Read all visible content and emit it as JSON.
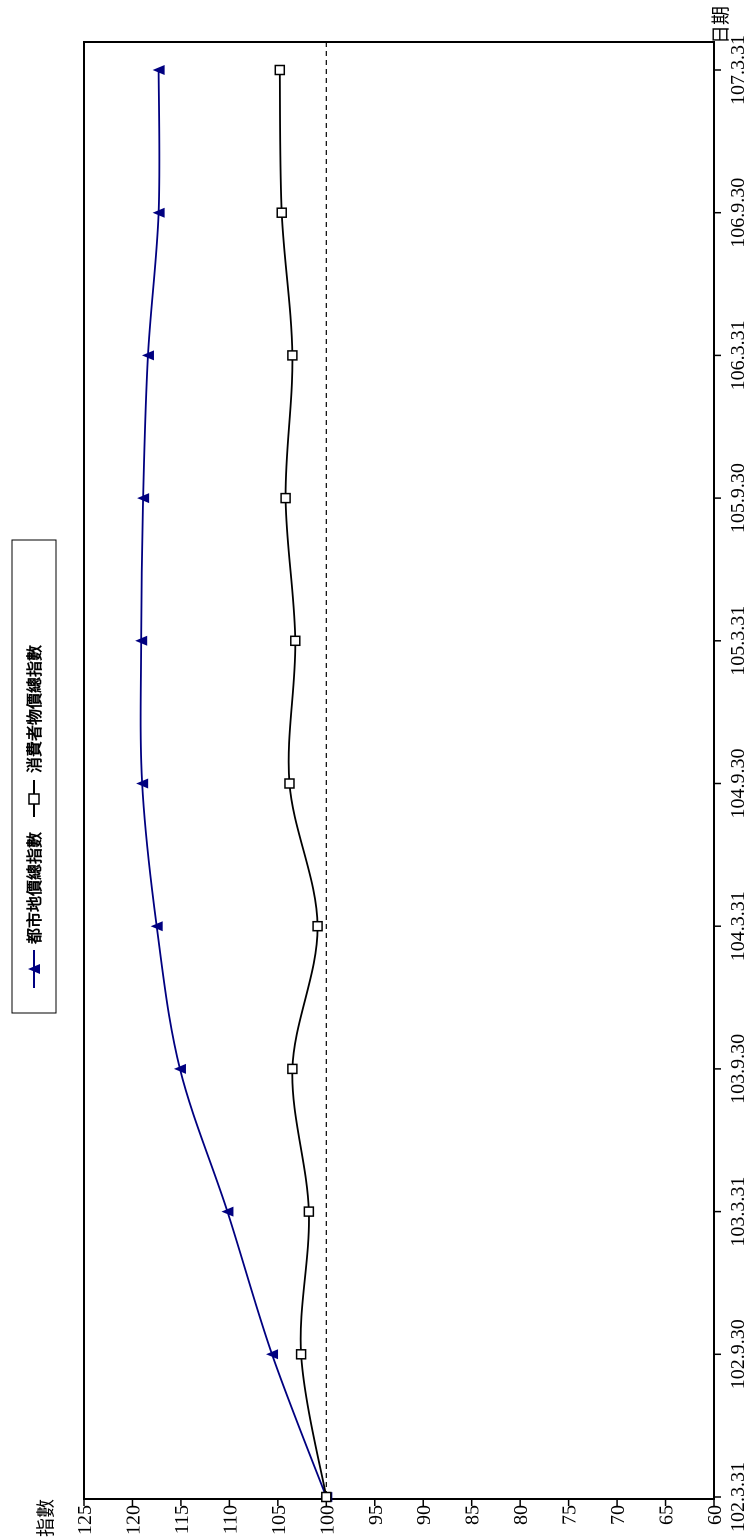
{
  "chart_data": {
    "type": "line",
    "title": "",
    "xlabel": "日期",
    "ylabel": "指數",
    "ylim": [
      60,
      125
    ],
    "yticks": [
      60,
      65,
      70,
      75,
      80,
      85,
      90,
      95,
      100,
      105,
      110,
      115,
      120,
      125
    ],
    "categories": [
      "102.3.31",
      "102.9.30",
      "103.3.31",
      "103.9.30",
      "104.3.31",
      "104.9.30",
      "105.3.31",
      "105.9.30",
      "106.3.31",
      "106.9.30",
      "107.3.31"
    ],
    "reference_line": 100,
    "legend_position": "top-center",
    "series": [
      {
        "name": "都市地價總指數",
        "marker": "triangle",
        "color": "#000080",
        "values": [
          100.0,
          105.6,
          110.2,
          115.1,
          117.5,
          119.0,
          119.1,
          118.9,
          118.4,
          117.3,
          117.3
        ]
      },
      {
        "name": "消費者物價總指數",
        "marker": "square",
        "color": "#000000",
        "values": [
          100.0,
          102.6,
          101.8,
          103.5,
          100.9,
          103.8,
          103.2,
          104.2,
          103.5,
          104.6,
          104.8
        ]
      }
    ]
  }
}
